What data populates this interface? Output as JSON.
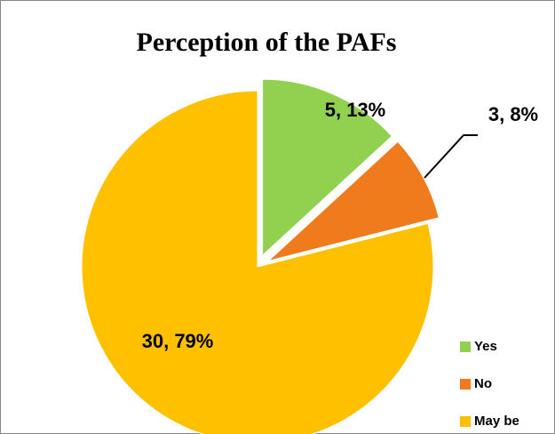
{
  "chart_data": {
    "type": "pie",
    "title": "Perception of the PAFs",
    "categories": [
      "Yes",
      "No",
      "May be"
    ],
    "values": [
      5,
      3,
      30
    ],
    "value_labels": [
      "5, 13%",
      "3, 8%",
      "30, 79%"
    ],
    "colors": [
      "#92d050",
      "#f07b1c",
      "#ffc000"
    ],
    "legend": "right"
  }
}
